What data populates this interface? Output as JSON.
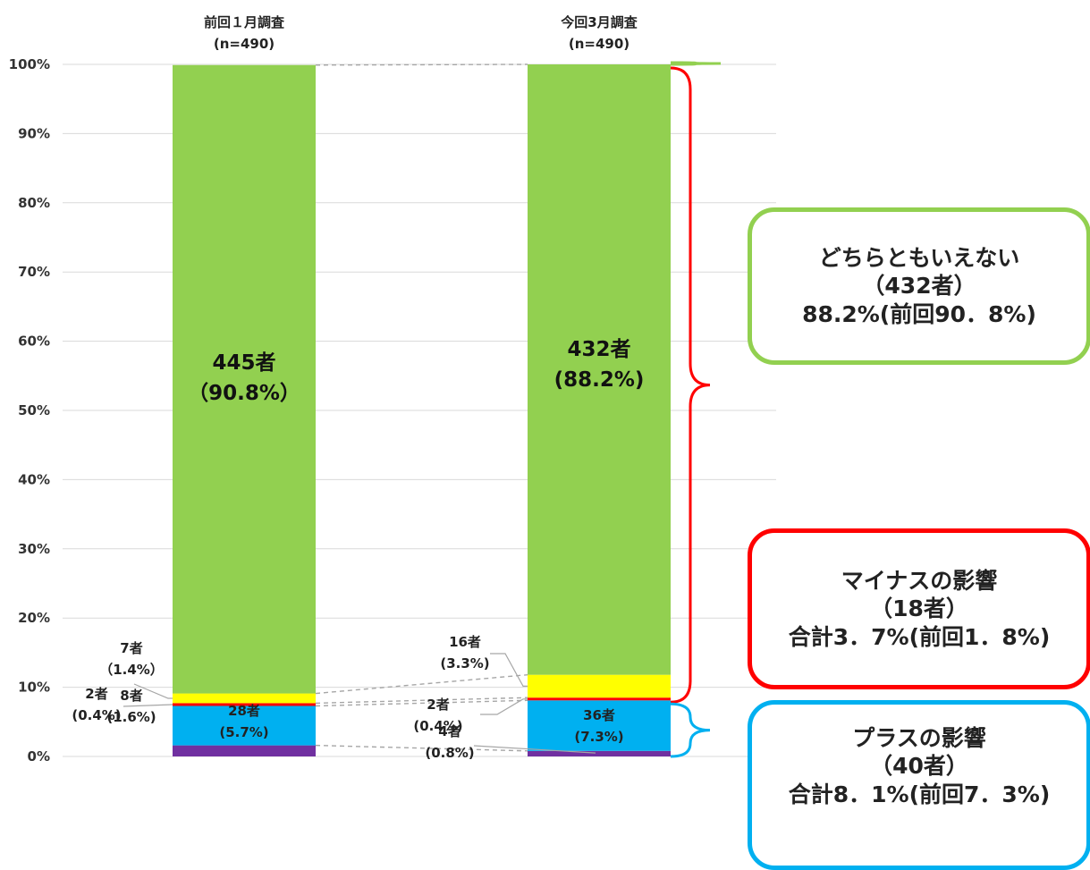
{
  "chart_data": {
    "type": "bar",
    "stacked": true,
    "categories": [
      {
        "line1": "前回１月調査",
        "line2": "(n=490)"
      },
      {
        "line1": "今回3月調査",
        "line2": "(n=490)"
      }
    ],
    "ylim": [
      0,
      100
    ],
    "y_ticks": [
      "0%",
      "10%",
      "20%",
      "30%",
      "40%",
      "50%",
      "60%",
      "70%",
      "80%",
      "90%",
      "100%"
    ],
    "grid": true,
    "series": [
      {
        "color": "#7030A0",
        "values": [
          1.6,
          0.8
        ],
        "labels": [
          [
            "8者",
            "(1.6%)"
          ],
          [
            "4者",
            "(0.8%)"
          ]
        ]
      },
      {
        "color": "#00B0F0",
        "values": [
          5.7,
          7.3
        ],
        "labels": [
          [
            "28者",
            "(5.7%)"
          ],
          [
            "36者",
            "(7.3%)"
          ]
        ]
      },
      {
        "color": "#FF0000",
        "values": [
          0.4,
          0.4
        ],
        "labels": [
          [
            "2者",
            "(0.4%)"
          ],
          [
            "2者",
            "(0.4%)"
          ]
        ]
      },
      {
        "color": "#FFFF00",
        "values": [
          1.4,
          3.3
        ],
        "labels": [
          [
            "7者",
            "（1.4%）"
          ],
          [
            "16者",
            "(3.3%)"
          ]
        ]
      },
      {
        "color": "#92D050",
        "values": [
          90.8,
          88.2
        ],
        "labels": [
          [
            "445者",
            "（90.8%）"
          ],
          [
            "432者",
            "(88.2%)"
          ]
        ]
      }
    ],
    "annotations": [
      {
        "lines": [
          "どちらともいえない",
          "（432者）",
          "88.2%(前回90．8%)"
        ],
        "color": "#92D050"
      },
      {
        "lines": [
          "マイナスの影響",
          "（18者）",
          "合計3．7%(前回1．8%)"
        ],
        "color": "#FF0000"
      },
      {
        "lines": [
          "プラスの影響",
          "（40者）",
          "合計8．1%(前回7．3%)"
        ],
        "color": "#00B0F0"
      }
    ]
  }
}
